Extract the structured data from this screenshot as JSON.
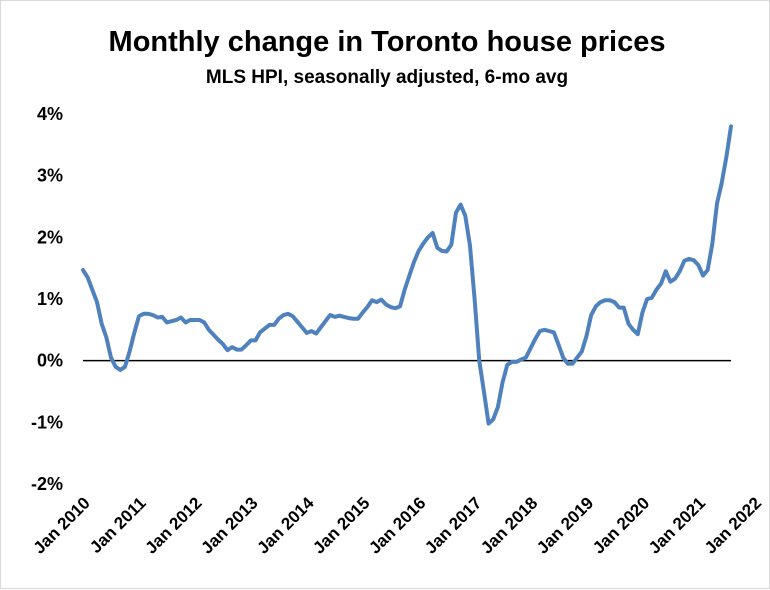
{
  "chart_data": {
    "type": "line",
    "title": "Monthly change in Toronto house prices",
    "subtitle": "MLS HPI, seasonally adjusted, 6-mo avg",
    "xlabel": "",
    "ylabel": "",
    "ylim": [
      -2,
      4
    ],
    "y_ticks": [
      4,
      3,
      2,
      1,
      0,
      -1,
      -2
    ],
    "y_tick_labels": [
      "4%",
      "3%",
      "2%",
      "1%",
      "0%",
      "-1%",
      "-2%"
    ],
    "x_tick_labels": [
      "Jan 2010",
      "Jan 2011",
      "Jan 2012",
      "Jan 2013",
      "Jan 2014",
      "Jan 2015",
      "Jan 2016",
      "Jan 2017",
      "Jan 2018",
      "Jan 2019",
      "Jan 2020",
      "Jan 2021",
      "Jan 2022"
    ],
    "x_start": "2010-01",
    "frequency": "monthly",
    "line_color": "#4f81bd",
    "series": [
      {
        "name": "Monthly change (%)",
        "values": [
          1.47,
          1.35,
          1.15,
          0.95,
          0.6,
          0.38,
          0.05,
          -0.1,
          -0.15,
          -0.1,
          0.15,
          0.45,
          0.72,
          0.76,
          0.76,
          0.74,
          0.7,
          0.71,
          0.62,
          0.64,
          0.66,
          0.7,
          0.62,
          0.66,
          0.66,
          0.66,
          0.62,
          0.5,
          0.42,
          0.34,
          0.27,
          0.17,
          0.22,
          0.18,
          0.18,
          0.25,
          0.33,
          0.33,
          0.46,
          0.52,
          0.58,
          0.58,
          0.68,
          0.74,
          0.76,
          0.72,
          0.63,
          0.54,
          0.45,
          0.48,
          0.44,
          0.54,
          0.64,
          0.74,
          0.71,
          0.73,
          0.71,
          0.69,
          0.68,
          0.68,
          0.78,
          0.87,
          0.98,
          0.95,
          0.99,
          0.91,
          0.87,
          0.85,
          0.88,
          1.15,
          1.38,
          1.6,
          1.78,
          1.9,
          2.0,
          2.07,
          1.83,
          1.78,
          1.77,
          1.88,
          2.4,
          2.53,
          2.35,
          1.87,
          1.0,
          0.0,
          -0.5,
          -1.02,
          -0.95,
          -0.75,
          -0.35,
          -0.07,
          -0.02,
          -0.02,
          0.02,
          0.05,
          0.2,
          0.35,
          0.48,
          0.5,
          0.48,
          0.46,
          0.26,
          0.05,
          -0.05,
          -0.05,
          0.05,
          0.15,
          0.4,
          0.74,
          0.88,
          0.95,
          0.98,
          0.98,
          0.95,
          0.86,
          0.86,
          0.6,
          0.5,
          0.43,
          0.78,
          1.0,
          1.02,
          1.15,
          1.25,
          1.45,
          1.28,
          1.33,
          1.45,
          1.62,
          1.65,
          1.63,
          1.55,
          1.38,
          1.47,
          1.9,
          2.55,
          2.88,
          3.3,
          3.8
        ]
      }
    ]
  }
}
